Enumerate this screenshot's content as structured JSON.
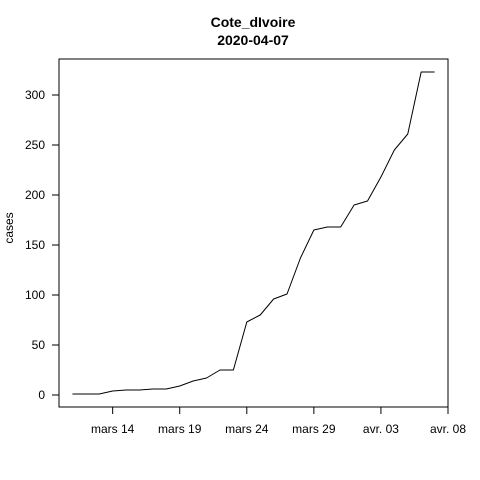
{
  "chart_data": {
    "type": "line",
    "title": "Cote_dIvoire",
    "subtitle": "2020-04-07",
    "xlabel": "",
    "ylabel": "cases",
    "x": [
      "2020-03-11",
      "2020-03-12",
      "2020-03-13",
      "2020-03-14",
      "2020-03-15",
      "2020-03-16",
      "2020-03-17",
      "2020-03-18",
      "2020-03-19",
      "2020-03-20",
      "2020-03-21",
      "2020-03-22",
      "2020-03-23",
      "2020-03-24",
      "2020-03-25",
      "2020-03-26",
      "2020-03-27",
      "2020-03-28",
      "2020-03-29",
      "2020-03-30",
      "2020-03-31",
      "2020-04-01",
      "2020-04-02",
      "2020-04-03",
      "2020-04-04",
      "2020-04-05",
      "2020-04-06",
      "2020-04-07"
    ],
    "series": [
      {
        "values": [
          1,
          1,
          1,
          4,
          5,
          5,
          6,
          6,
          9,
          14,
          17,
          25,
          25,
          73,
          80,
          96,
          101,
          137,
          165,
          168,
          168,
          190,
          194,
          218,
          245,
          261,
          323,
          323
        ]
      }
    ],
    "xlim": [
      "2020-03-10",
      "2020-04-08"
    ],
    "ylim": [
      -12,
      336
    ],
    "x_ticks": [
      {
        "date": "2020-03-14",
        "label": "mars 14"
      },
      {
        "date": "2020-03-19",
        "label": "mars 19"
      },
      {
        "date": "2020-03-24",
        "label": "mars 24"
      },
      {
        "date": "2020-03-29",
        "label": "mars 29"
      },
      {
        "date": "2020-04-03",
        "label": "avr. 03"
      },
      {
        "date": "2020-04-08",
        "label": "avr. 08"
      }
    ],
    "y_ticks": [
      0,
      50,
      100,
      150,
      200,
      250,
      300
    ],
    "grid": false,
    "line_color": "#000000"
  }
}
